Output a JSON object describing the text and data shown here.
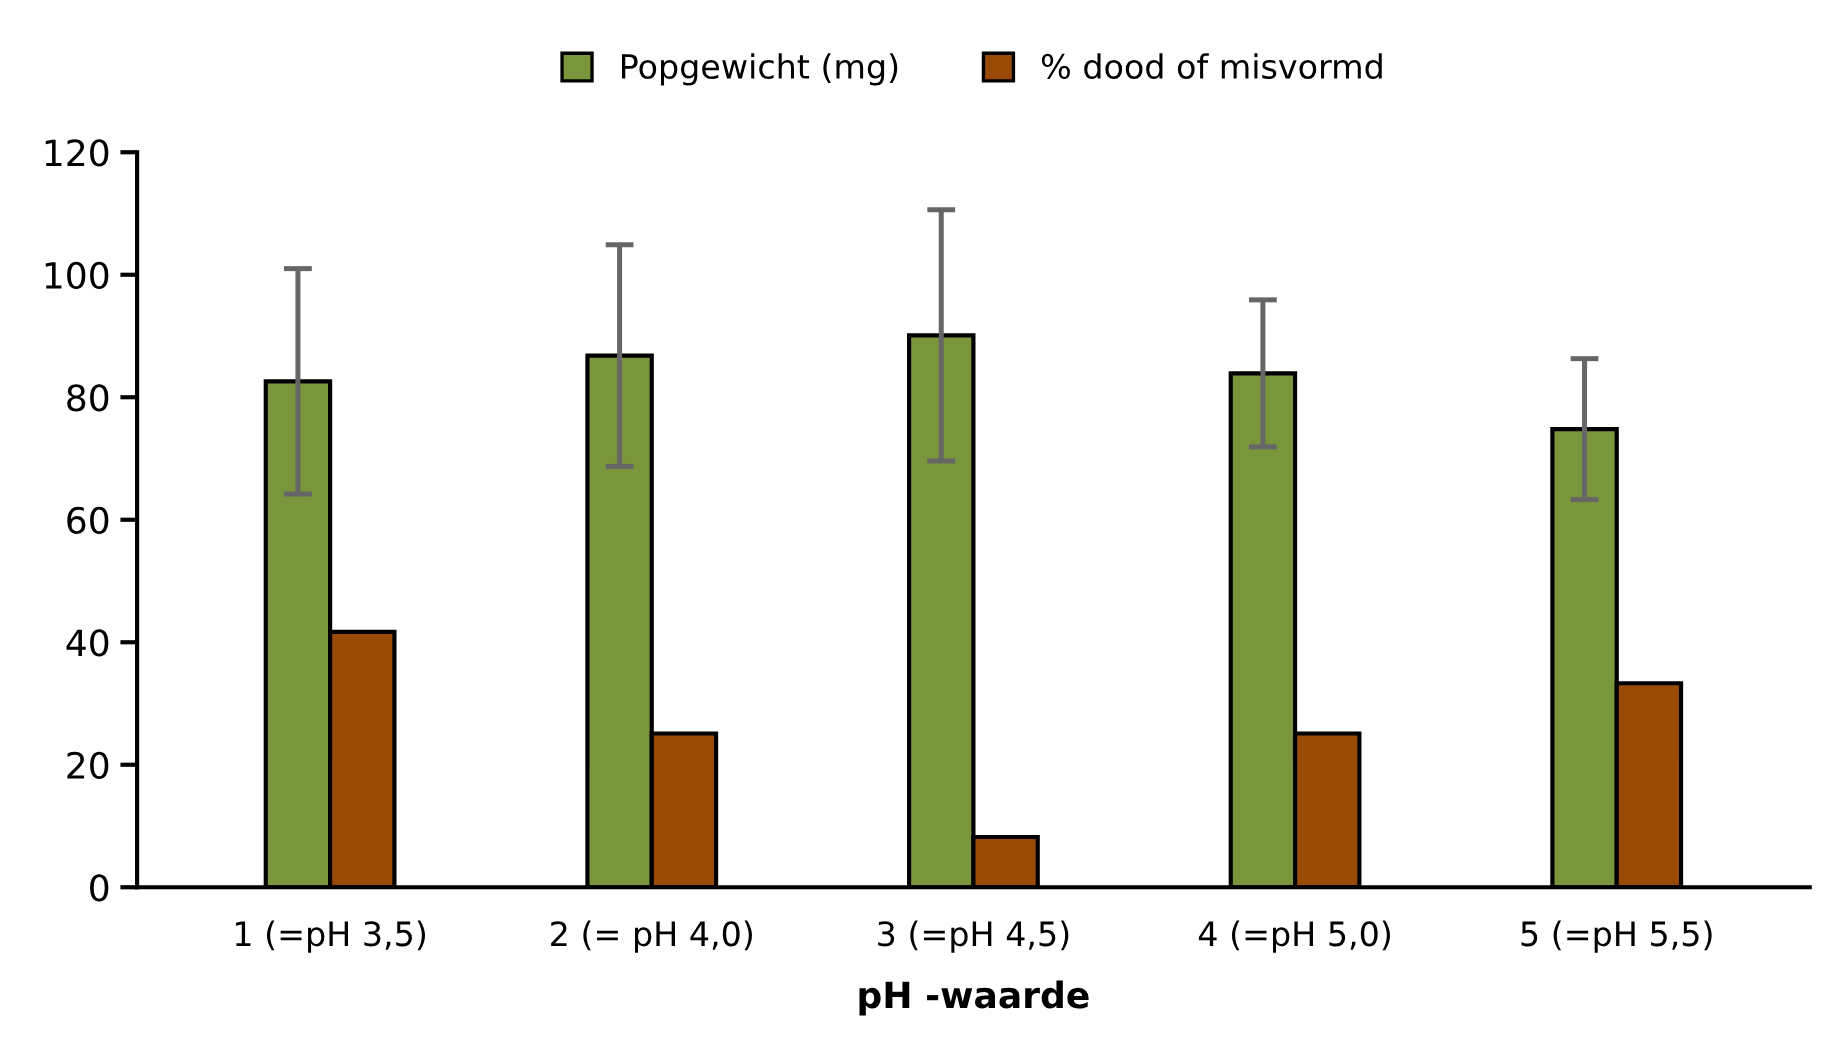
{
  "chart_data": {
    "type": "bar",
    "xlabel": "pH -waarde",
    "categories": [
      "1 (=pH 3,5)",
      "2 (= pH 4,0)",
      "3 (=pH 4,5)",
      "4 (=pH 5,0)",
      "5 (=pH 5,5)"
    ],
    "series": [
      {
        "name": "Popgewicht (mg)",
        "color": "#7a963c",
        "values": [
          82.6,
          86.8,
          90.1,
          83.9,
          74.8
        ],
        "errors": [
          18.4,
          18.1,
          20.5,
          12,
          11.5
        ]
      },
      {
        "name": "% dood of misvormd",
        "color": "#9a4a07",
        "values": [
          41.7,
          25.1,
          8.2,
          25.1,
          33.3
        ]
      }
    ],
    "ylim": [
      0,
      120
    ],
    "yticks": [
      0,
      20,
      40,
      60,
      80,
      100,
      120
    ],
    "grid": false,
    "legend": "top"
  }
}
